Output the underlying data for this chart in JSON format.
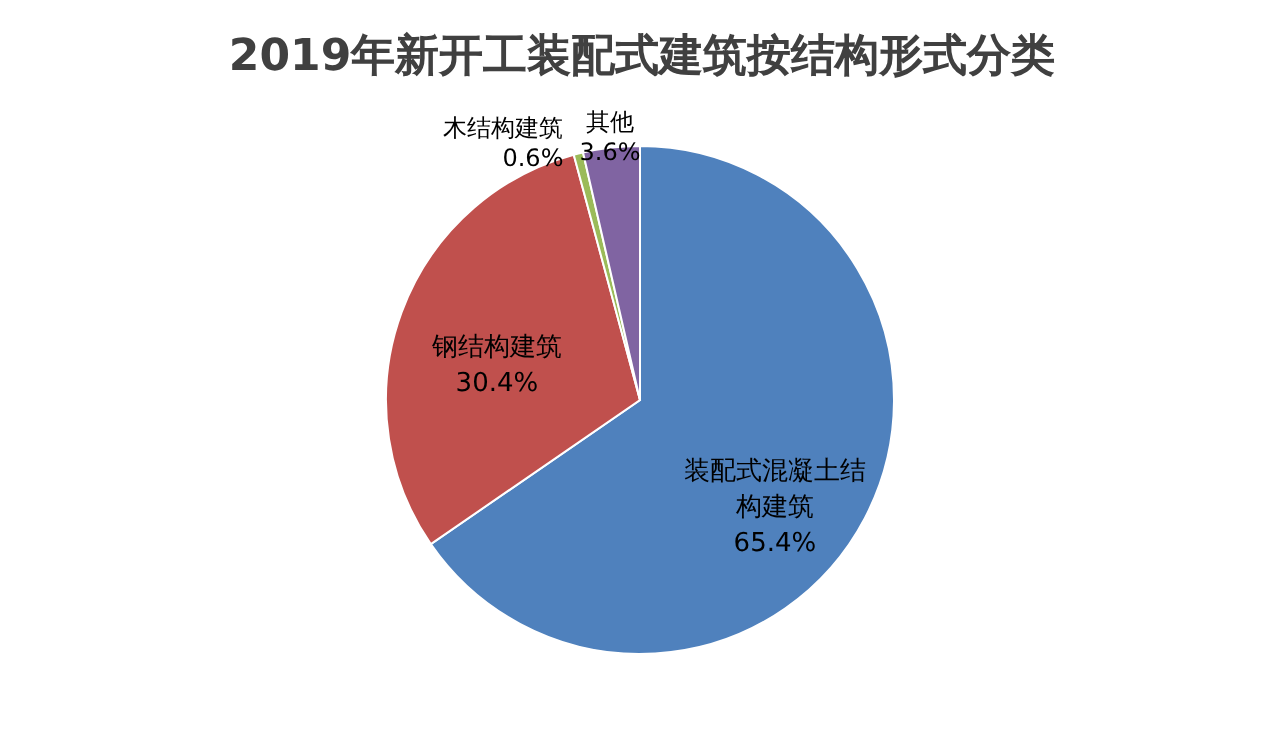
{
  "chart_data": {
    "type": "pie",
    "title": "2019年新开工装配式建筑按结构形式分类",
    "categories": [
      "装配式混凝土结构建筑",
      "钢结构建筑",
      "木结构建筑",
      "其他"
    ],
    "values": [
      65.4,
      30.4,
      0.6,
      3.6
    ],
    "colors": [
      "#4f81bd",
      "#c0504d",
      "#9bbb59",
      "#8064a2"
    ],
    "value_labels": [
      "65.4%",
      "30.4%",
      "0.6%",
      "3.6%"
    ]
  }
}
